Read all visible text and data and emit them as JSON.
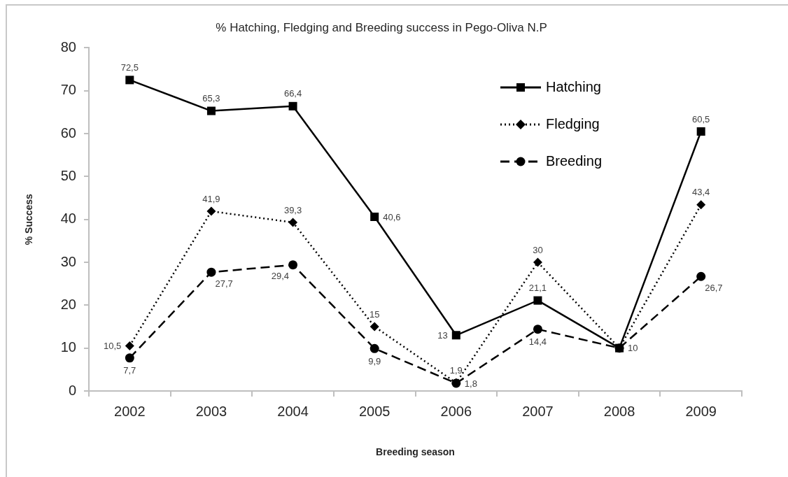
{
  "chart_data": {
    "type": "line",
    "title": "% Hatching, Fledging and Breeding success in Pego-Oliva N.P",
    "xlabel": "Breeding season",
    "ylabel": "% Success",
    "categories": [
      "2002",
      "2003",
      "2004",
      "2005",
      "2006",
      "2007",
      "2008",
      "2009"
    ],
    "series": [
      {
        "name": "Hatching",
        "color": "#000000",
        "marker": "square",
        "line_style": "solid",
        "values": [
          72.5,
          65.3,
          66.4,
          40.6,
          13,
          21.1,
          10,
          60.5
        ],
        "value_labels": [
          "72,5",
          "65,3",
          "66,4",
          "40,6",
          "13",
          "21,1",
          "10",
          "60,5"
        ]
      },
      {
        "name": "Fledging",
        "color": "#000000",
        "marker": "diamond",
        "line_style": "dotted",
        "values": [
          10.5,
          41.9,
          39.3,
          15,
          1.9,
          30,
          10,
          43.4
        ],
        "value_labels": [
          "10,5",
          "41,9",
          "39,3",
          "15",
          "1,9",
          "30",
          null,
          "43,4"
        ]
      },
      {
        "name": "Breeding",
        "color": "#000000",
        "marker": "circle",
        "line_style": "dashed",
        "values": [
          7.7,
          27.7,
          29.4,
          9.9,
          1.8,
          14.4,
          10,
          26.7
        ],
        "value_labels": [
          "7,7",
          "27,7",
          "29,4",
          "9,9",
          "1,8",
          "14,4",
          null,
          "26,7"
        ]
      }
    ],
    "ylim": [
      0,
      80
    ],
    "yticks": [
      0,
      10,
      20,
      30,
      40,
      50,
      60,
      70,
      80
    ],
    "legend": "top right"
  }
}
